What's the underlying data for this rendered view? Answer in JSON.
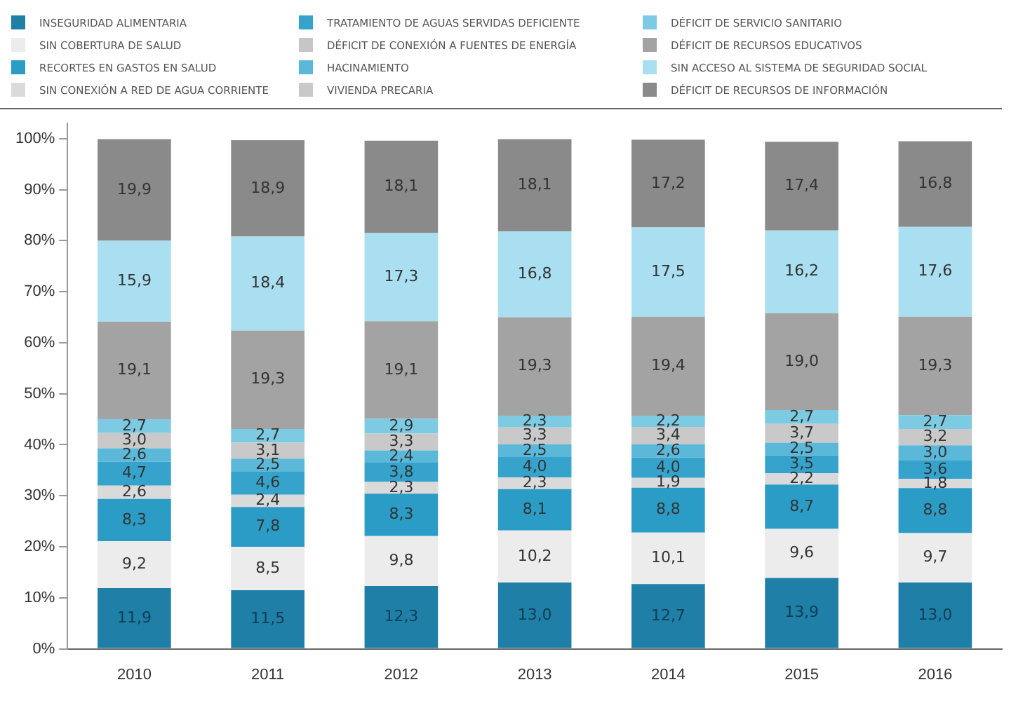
{
  "chart_data": {
    "type": "bar",
    "stacked": true,
    "legend": "top",
    "grid": false,
    "categories": [
      "2010",
      "2011",
      "2012",
      "2013",
      "2014",
      "2015",
      "2016"
    ],
    "ylim": [
      0,
      103
    ],
    "yticks": [
      {
        "value": 0,
        "label": "0%"
      },
      {
        "value": 10,
        "label": "10%"
      },
      {
        "value": 20,
        "label": "20%"
      },
      {
        "value": 30,
        "label": "30%"
      },
      {
        "value": 40,
        "label": "40%"
      },
      {
        "value": 50,
        "label": "50%"
      },
      {
        "value": 60,
        "label": "60%"
      },
      {
        "value": 70,
        "label": "70%"
      },
      {
        "value": 80,
        "label": "80%"
      },
      {
        "value": 90,
        "label": "90%"
      },
      {
        "value": 100,
        "label": "100%"
      }
    ],
    "series": [
      {
        "name": "INSEGURIDAD ALIMENTARIA",
        "color": "#1f7fa6",
        "values": [
          11.9,
          11.5,
          12.3,
          13.0,
          12.7,
          13.9,
          13.0
        ],
        "value_labels": [
          "11,9",
          "11,5",
          "12,3",
          "13,0",
          "12,7",
          "13,9",
          "13,0"
        ]
      },
      {
        "name": "SIN COBERTURA DE SALUD",
        "color": "#ececec",
        "values": [
          9.2,
          8.5,
          9.8,
          10.2,
          10.1,
          9.6,
          9.7
        ],
        "value_labels": [
          "9,2",
          "8,5",
          "9,8",
          "10,2",
          "10,1",
          "9,6",
          "9,7"
        ]
      },
      {
        "name": "RECORTES EN GASTOS EN SALUD",
        "color": "#2b9cc6",
        "values": [
          8.3,
          7.8,
          8.3,
          8.1,
          8.8,
          8.7,
          8.8
        ],
        "value_labels": [
          "8,3",
          "7,8",
          "8,3",
          "8,1",
          "8,8",
          "8,7",
          "8,8"
        ]
      },
      {
        "name": "SIN CONEXIÓN A RED DE AGUA CORRIENTE",
        "color": "#dadada",
        "values": [
          2.6,
          2.4,
          2.3,
          2.3,
          1.9,
          2.2,
          1.8
        ],
        "value_labels": [
          "2,6",
          "2,4",
          "2,3",
          "2,3",
          "1,9",
          "2,2",
          "1,8"
        ]
      },
      {
        "name": "TRATAMIENTO DE AGUAS SERVIDAS DEFICIENTE",
        "color": "#35a3cc",
        "values": [
          4.7,
          4.6,
          3.8,
          4.0,
          4.0,
          3.5,
          3.6
        ],
        "value_labels": [
          "4,7",
          "4,6",
          "3,8",
          "4,0",
          "4,0",
          "3,5",
          "3,6"
        ]
      },
      {
        "name": "DÉFICIT DE CONEXIÓN A FUENTES DE ENERGÍA",
        "color": "#c6c6c6",
        "values": [
          null,
          null,
          null,
          null,
          null,
          null,
          null
        ]
      },
      {
        "name": "HACINAMIENTO",
        "color": "#5bb8d9",
        "values": [
          2.6,
          2.5,
          2.4,
          2.5,
          2.6,
          2.5,
          3.0
        ],
        "value_labels": [
          "2,6",
          "2,5",
          "2,4",
          "2,5",
          "2,6",
          "2,5",
          "3,0"
        ]
      },
      {
        "name": "VIVIENDA PRECARIA",
        "color": "#c9c9c9",
        "values": [
          3.0,
          3.1,
          3.3,
          3.3,
          3.4,
          3.7,
          3.2
        ],
        "value_labels": [
          "3,0",
          "3,1",
          "3,3",
          "3,3",
          "3,4",
          "3,7",
          "3,2"
        ]
      },
      {
        "name": "DÉFICIT DE SERVICIO SANITARIO",
        "color": "#7dcbe3",
        "values": [
          2.7,
          2.7,
          2.9,
          2.3,
          2.2,
          2.7,
          2.7
        ],
        "value_labels": [
          "2,7",
          "2,7",
          "2,9",
          "2,3",
          "2,2",
          "2,7",
          "2,7"
        ]
      },
      {
        "name": "DÉFICIT DE RECURSOS EDUCATIVOS",
        "color": "#a3a3a3",
        "values": [
          19.1,
          19.3,
          19.1,
          19.3,
          19.4,
          19.0,
          19.3
        ],
        "value_labels": [
          "19,1",
          "19,3",
          "19,1",
          "19,3",
          "19,4",
          "19,0",
          "19,3"
        ]
      },
      {
        "name": "SIN ACCESO AL SISTEMA DE SEGURIDAD SOCIAL",
        "color": "#a9dff0",
        "values": [
          15.9,
          18.4,
          17.3,
          16.8,
          17.5,
          16.2,
          17.6
        ],
        "value_labels": [
          "15,9",
          "18,4",
          "17,3",
          "16,8",
          "17,5",
          "16,2",
          "17,6"
        ]
      },
      {
        "name": "DÉFICIT DE RECURSOS DE INFORMACIÓN",
        "color": "#8a8a8a",
        "values": [
          19.9,
          18.9,
          18.1,
          18.1,
          17.2,
          17.4,
          16.8
        ],
        "value_labels": [
          "19,9",
          "18,9",
          "18,1",
          "18,1",
          "17,2",
          "17,4",
          "16,8"
        ]
      }
    ]
  }
}
